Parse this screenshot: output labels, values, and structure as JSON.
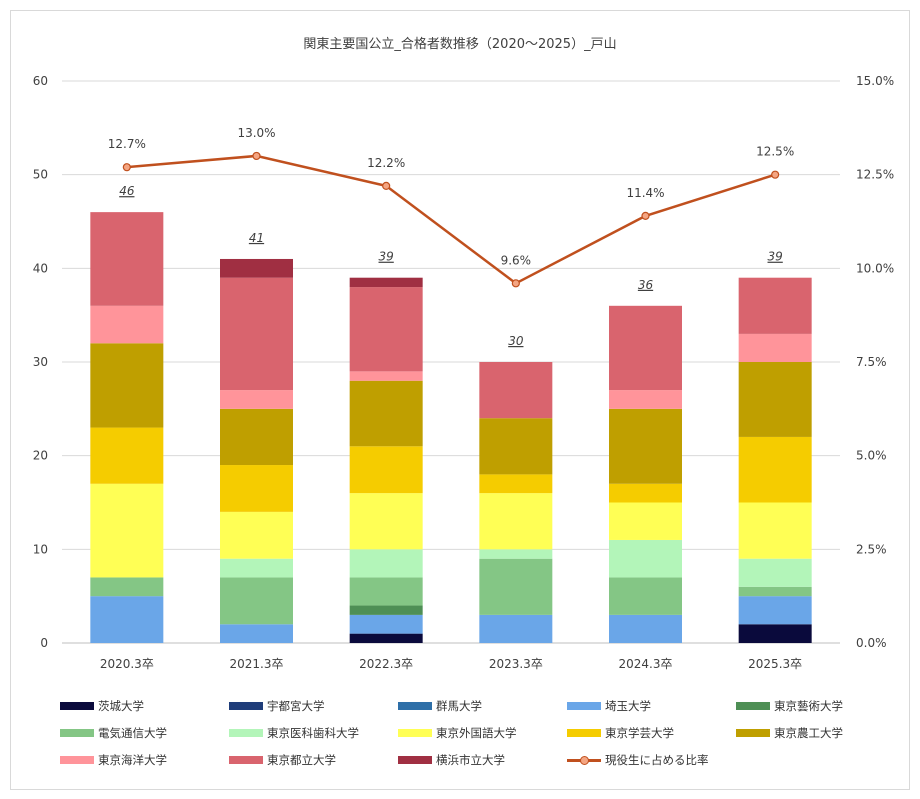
{
  "chart_data": {
    "type": "bar",
    "stacked": true,
    "title": "関東主要国公立_合格者数推移（2020～2025）_戸山",
    "categories": [
      "2020.3卒",
      "2021.3卒",
      "2022.3卒",
      "2023.3卒",
      "2024.3卒",
      "2025.3卒"
    ],
    "ylim": [
      0,
      60
    ],
    "yticks": [
      "0",
      "10",
      "20",
      "30",
      "40",
      "50",
      "60"
    ],
    "y2lim": [
      0,
      15
    ],
    "y2ticks": [
      "0.0%",
      "2.5%",
      "5.0%",
      "7.5%",
      "10.0%",
      "12.5%",
      "15.0%"
    ],
    "grid": true,
    "legend_position": "bottom",
    "series": [
      {
        "name": "茨城大学",
        "color": "#0a0a3c",
        "values": [
          0,
          0,
          1,
          0,
          0,
          2
        ]
      },
      {
        "name": "宇都宮大学",
        "color": "#1f3d7a",
        "values": [
          0,
          0,
          0,
          0,
          0,
          0
        ]
      },
      {
        "name": "群馬大学",
        "color": "#2e6fa8",
        "values": [
          0,
          0,
          0,
          0,
          0,
          0
        ]
      },
      {
        "name": "埼玉大学",
        "color": "#6aa6e8",
        "values": [
          5,
          2,
          2,
          3,
          3,
          3
        ]
      },
      {
        "name": "東京藝術大学",
        "color": "#4e8f55",
        "values": [
          0,
          0,
          1,
          0,
          0,
          0
        ]
      },
      {
        "name": "電気通信大学",
        "color": "#84c685",
        "values": [
          2,
          5,
          3,
          6,
          4,
          1
        ]
      },
      {
        "name": "東京医科歯科大学",
        "color": "#b3f5b9",
        "values": [
          0,
          2,
          3,
          1,
          4,
          3
        ]
      },
      {
        "name": "東京外国語大学",
        "color": "#ffff55",
        "values": [
          10,
          5,
          6,
          6,
          4,
          6
        ]
      },
      {
        "name": "東京学芸大学",
        "color": "#f5cc00",
        "values": [
          6,
          5,
          5,
          2,
          2,
          7
        ]
      },
      {
        "name": "東京農工大学",
        "color": "#bf9f00",
        "values": [
          9,
          6,
          7,
          6,
          8,
          8
        ]
      },
      {
        "name": "東京海洋大学",
        "color": "#ff949a",
        "values": [
          4,
          2,
          1,
          0,
          2,
          3
        ]
      },
      {
        "name": "東京都立大学",
        "color": "#d9646e",
        "values": [
          10,
          12,
          9,
          6,
          9,
          6
        ]
      },
      {
        "name": "横浜市立大学",
        "color": "#a02f42",
        "values": [
          0,
          2,
          1,
          0,
          0,
          0
        ]
      }
    ],
    "totals": [
      "46",
      "41",
      "39",
      "30",
      "36",
      "39"
    ],
    "line": {
      "name": "現役生に占める比率",
      "color": "#c0501e",
      "values": [
        12.7,
        13.0,
        12.2,
        9.6,
        11.4,
        12.5
      ],
      "labels": [
        "12.7%",
        "13.0%",
        "12.2%",
        "9.6%",
        "11.4%",
        "12.5%"
      ]
    }
  }
}
